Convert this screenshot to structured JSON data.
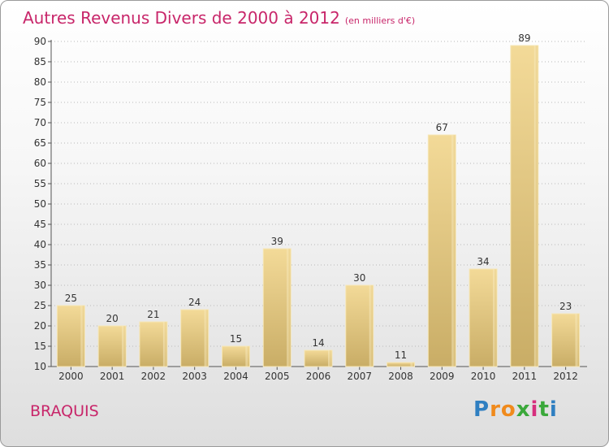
{
  "header": {
    "title": "Autres Revenus Divers de 2000 à 2012",
    "subtitle": "(en milliers d'€)"
  },
  "commune": "BRAQUIS",
  "logo": {
    "letters": [
      "P",
      "r",
      "o",
      "x",
      "i",
      "t",
      "i"
    ],
    "colors": [
      "#2f7fc1",
      "#f08a1c",
      "#f08a1c",
      "#3aa83a",
      "#d62f7e",
      "#3aa83a",
      "#2f7fc1"
    ]
  },
  "chart_data": {
    "type": "bar",
    "categories": [
      "2000",
      "2001",
      "2002",
      "2003",
      "2004",
      "2005",
      "2006",
      "2007",
      "2008",
      "2009",
      "2010",
      "2011",
      "2012"
    ],
    "values": [
      25,
      20,
      21,
      24,
      15,
      39,
      14,
      30,
      11,
      67,
      34,
      89,
      23
    ],
    "title": "Autres Revenus Divers de 2000 à 2012",
    "ylim": [
      10,
      90
    ],
    "yticks": [
      10,
      15,
      20,
      25,
      30,
      35,
      40,
      45,
      50,
      55,
      60,
      65,
      70,
      75,
      80,
      85,
      90
    ],
    "grid": "horizontal-dotted",
    "bar_color": "#e4c77e"
  }
}
